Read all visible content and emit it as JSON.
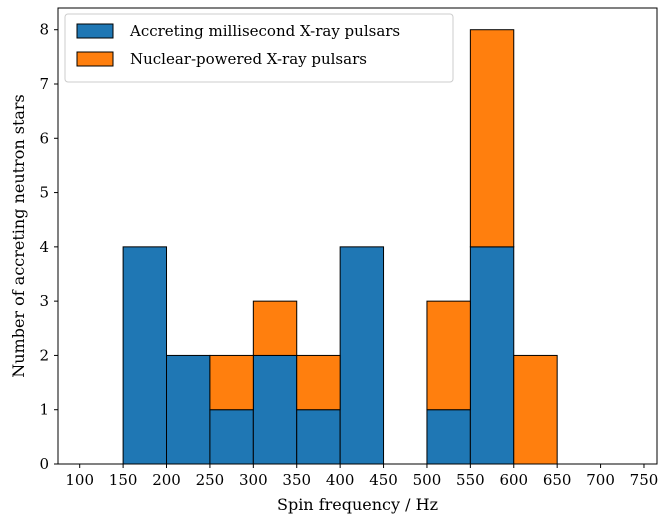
{
  "chart_data": {
    "type": "bar",
    "stacked": true,
    "xlabel": "Spin frequency / Hz",
    "ylabel": "Number of accreting neutron stars",
    "xlim": [
      75,
      765
    ],
    "ylim": [
      0,
      8.4
    ],
    "xticks": [
      100,
      150,
      200,
      250,
      300,
      350,
      400,
      450,
      500,
      550,
      600,
      650,
      700,
      750
    ],
    "yticks": [
      0,
      1,
      2,
      3,
      4,
      5,
      6,
      7,
      8
    ],
    "bin_edges": [
      100,
      150,
      200,
      250,
      300,
      350,
      400,
      450,
      500,
      550,
      600,
      650,
      700,
      750
    ],
    "legend_position": "upper-left",
    "series": [
      {
        "name": "Accreting millisecond X-ray pulsars",
        "color": "#1f77b4",
        "values": [
          0,
          4,
          2,
          1,
          2,
          1,
          4,
          0,
          1,
          4,
          0,
          0,
          0
        ]
      },
      {
        "name": "Nuclear-powered X-ray pulsars",
        "color": "#ff7f0e",
        "values": [
          0,
          0,
          0,
          1,
          1,
          1,
          0,
          0,
          2,
          4,
          2,
          0,
          0
        ]
      }
    ]
  }
}
